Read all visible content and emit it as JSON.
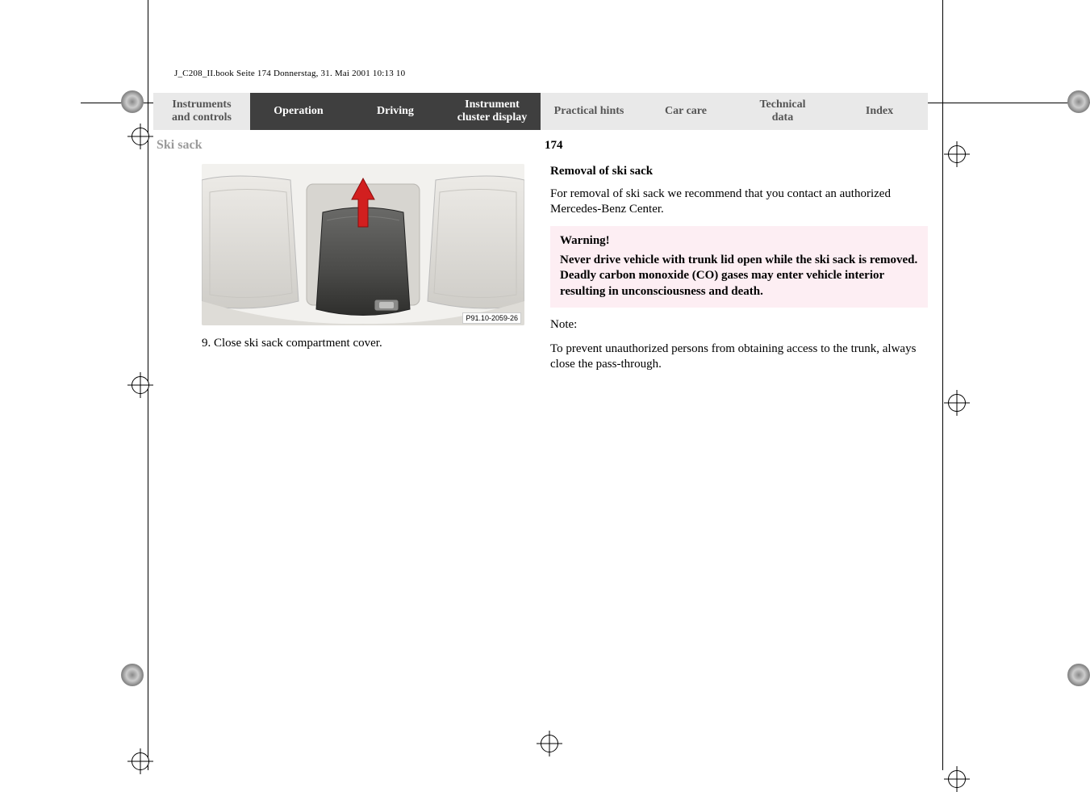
{
  "header_line": "J_C208_II.book  Seite 174  Donnerstag, 31. Mai 2001  10:13 10",
  "nav": [
    {
      "label": "Instruments\nand controls",
      "tone": "light"
    },
    {
      "label": "Operation",
      "tone": "dark"
    },
    {
      "label": "Driving",
      "tone": "dark"
    },
    {
      "label": "Instrument\ncluster display",
      "tone": "dark"
    },
    {
      "label": "Practical hints",
      "tone": "light"
    },
    {
      "label": "Car care",
      "tone": "light"
    },
    {
      "label": "Technical\ndata",
      "tone": "light"
    },
    {
      "label": "Index",
      "tone": "light"
    }
  ],
  "section_title": "Ski sack",
  "page_number": "174",
  "figure_label": "P91.10-2059-26",
  "step_text": "9.  Close ski sack compartment cover.",
  "right": {
    "heading": "Removal of ski sack",
    "para1": "For removal of ski sack we recommend that you contact an authorized Mercedes-Benz Center.",
    "warn_title": "Warning!",
    "warn_body": "Never drive vehicle with trunk lid open while the ski sack is removed. Deadly carbon monoxide (CO) gases may enter vehicle interior resulting in unconsciousness and death.",
    "note_label": "Note:",
    "note_body": "To prevent unauthorized persons from obtaining access to the trunk, always close the pass-through."
  },
  "colors": {
    "nav_dark_bg": "#3f3f3f",
    "nav_light_bg": "#e9e9e9",
    "warn_bg": "#fdeef3",
    "muted_title": "#9a9a9a"
  }
}
